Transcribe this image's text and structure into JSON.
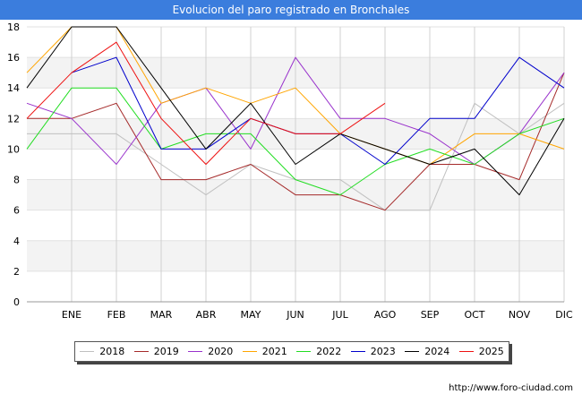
{
  "header": {
    "title": "Evolucion del paro registrado en Bronchales"
  },
  "footer": {
    "url": "http://www.foro-ciudad.com"
  },
  "chart_data": {
    "type": "line",
    "title": "Evolucion del paro registrado en Bronchales",
    "xlabel": "",
    "ylabel": "",
    "categories": [
      "",
      "ENE",
      "FEB",
      "MAR",
      "ABR",
      "MAY",
      "JUN",
      "JUL",
      "AGO",
      "SEP",
      "OCT",
      "NOV",
      "DIC"
    ],
    "ylim": [
      0,
      18
    ],
    "yticks": [
      "0",
      "2",
      "4",
      "6",
      "8",
      "10",
      "12",
      "14",
      "16",
      "18"
    ],
    "grid": true,
    "legend_position": "bottom",
    "series": [
      {
        "name": "2018",
        "color": "#c0c0c0",
        "values": [
          11,
          11,
          11,
          9,
          7,
          9,
          8,
          8,
          6,
          6,
          13,
          11,
          13
        ]
      },
      {
        "name": "2019",
        "color": "#a52a2a",
        "values": [
          12,
          12,
          13,
          8,
          8,
          9,
          7,
          7,
          6,
          9,
          9,
          8,
          15
        ]
      },
      {
        "name": "2020",
        "color": "#9932cc",
        "values": [
          13,
          12,
          9,
          13,
          14,
          10,
          16,
          12,
          12,
          11,
          9,
          11,
          15
        ]
      },
      {
        "name": "2021",
        "color": "#ffa500",
        "values": [
          15,
          18,
          18,
          13,
          14,
          13,
          14,
          11,
          10,
          9,
          11,
          11,
          10
        ]
      },
      {
        "name": "2022",
        "color": "#22dd22",
        "values": [
          10,
          14,
          14,
          10,
          11,
          11,
          8,
          7,
          9,
          10,
          9,
          11,
          12
        ]
      },
      {
        "name": "2023",
        "color": "#0000cc",
        "values": [
          null,
          15,
          16,
          10,
          10,
          12,
          11,
          11,
          9,
          12,
          12,
          16,
          14
        ]
      },
      {
        "name": "2024",
        "color": "#000000",
        "values": [
          14,
          18,
          18,
          14,
          10,
          13,
          9,
          11,
          10,
          9,
          10,
          7,
          12
        ]
      },
      {
        "name": "2025",
        "color": "#ee1111",
        "values": [
          12,
          15,
          17,
          12,
          9,
          12,
          11,
          11,
          13,
          null,
          null,
          null,
          null
        ]
      }
    ]
  }
}
